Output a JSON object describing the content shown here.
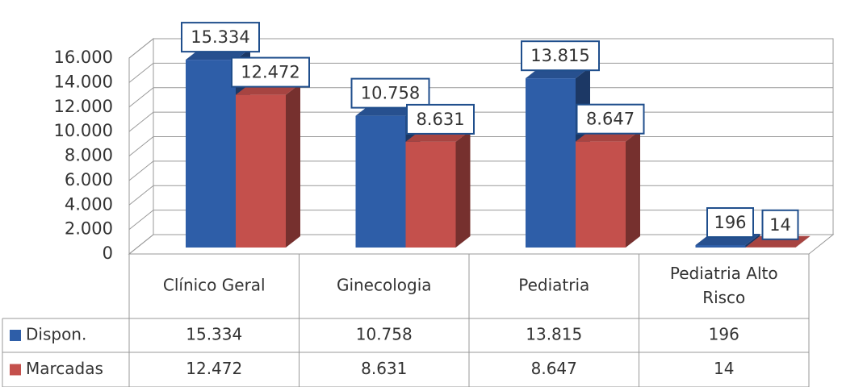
{
  "chart_data": {
    "type": "bar3d",
    "categories": [
      "Clínico Geral",
      "Ginecologia",
      "Pediatria",
      "Pediatria Alto Risco"
    ],
    "series": [
      {
        "name": "Dispon.",
        "color": "#2e5ea8",
        "values": [
          15334,
          10758,
          13815,
          196
        ],
        "value_labels": [
          "15.334",
          "10.758",
          "13.815",
          "196"
        ]
      },
      {
        "name": "Marcadas",
        "color": "#c4504c",
        "values": [
          12472,
          8631,
          8647,
          14
        ],
        "value_labels": [
          "12.472",
          "8.631",
          "8.647",
          "14"
        ]
      }
    ],
    "ylim": [
      0,
      16000
    ],
    "yticks": [
      0,
      {
        "value": 2000,
        "label": "2.000"
      },
      {
        "value": 4000,
        "label": "4.000"
      },
      {
        "value": 6000,
        "label": "6.000"
      },
      {
        "value": 8000,
        "label": "8.000"
      },
      {
        "value": 10000,
        "label": "10.000"
      },
      {
        "value": 12000,
        "label": "12.000"
      },
      {
        "value": 14000,
        "label": "14.000"
      },
      {
        "value": 16000,
        "label": "16.000"
      }
    ],
    "grid": true
  }
}
